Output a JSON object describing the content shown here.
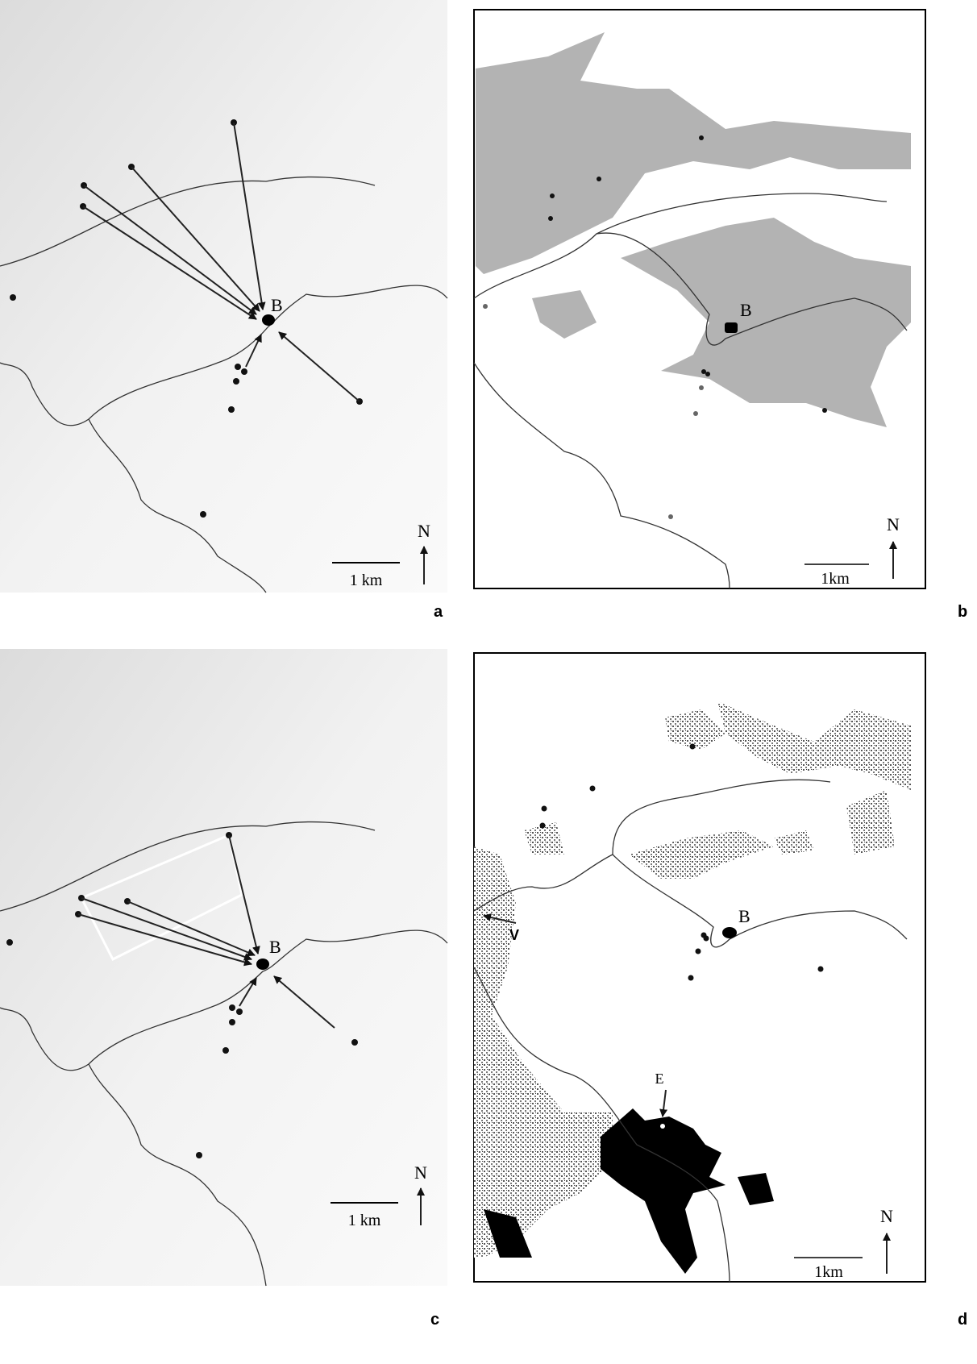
{
  "panels": [
    {
      "label": "a",
      "site": "B",
      "north": "N",
      "scale": "1 km"
    },
    {
      "label": "b",
      "site": "B",
      "north": "N",
      "scale": "1km"
    },
    {
      "label": "c",
      "site": "B",
      "north": "N",
      "scale": "1 km"
    },
    {
      "label": "d",
      "site": "B",
      "north": "N",
      "scale": "1km",
      "markers": [
        "V",
        "E"
      ]
    }
  ]
}
